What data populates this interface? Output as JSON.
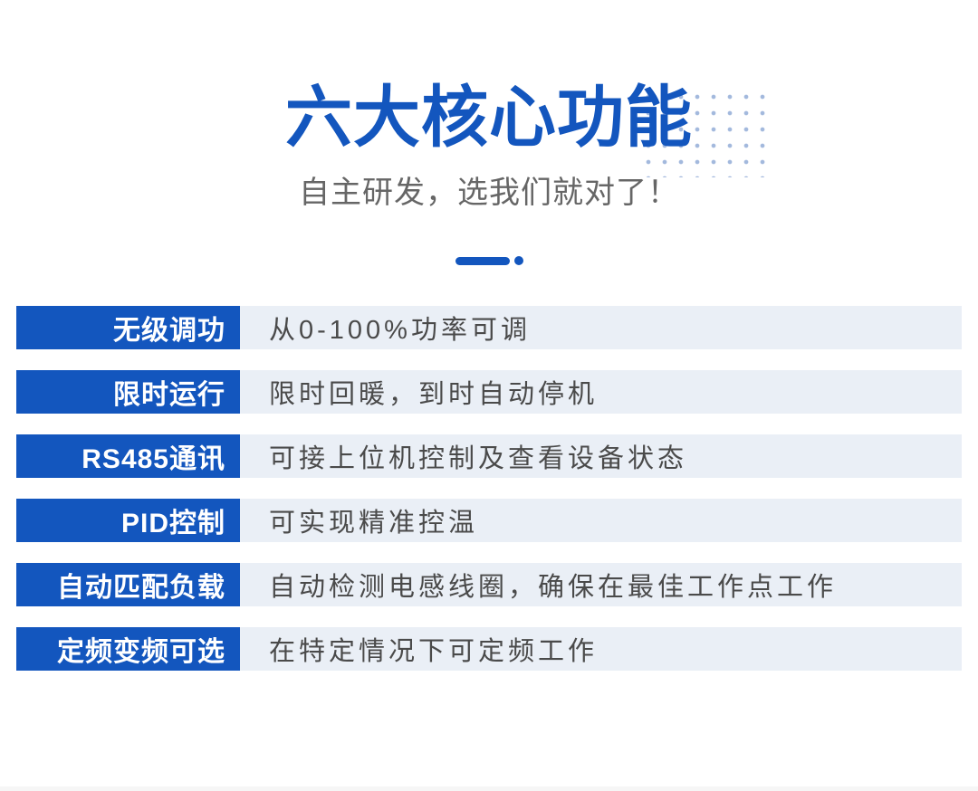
{
  "page": {
    "background": "#ffffff",
    "accent_blue": "#1356BE",
    "row_bar_bg": "#EAEFF6",
    "dot_pattern_color": "#A3B9DD",
    "desc_text_color": "#4A4A4A",
    "subtitle_color": "#666666"
  },
  "header": {
    "title": "六大核心功能",
    "subtitle": "自主研发，选我们就对了！"
  },
  "features": [
    {
      "label": "无级调功",
      "desc": "从0-100%功率可调"
    },
    {
      "label": "限时运行",
      "desc": "限时回暖，到时自动停机"
    },
    {
      "label": "RS485通讯",
      "desc": "可接上位机控制及查看设备状态"
    },
    {
      "label": "PID控制",
      "desc": "可实现精准控温"
    },
    {
      "label": "自动匹配负载",
      "desc": "自动检测电感线圈，确保在最佳工作点工作"
    },
    {
      "label": "定频变频可选",
      "desc": "在特定情况下可定频工作"
    }
  ]
}
